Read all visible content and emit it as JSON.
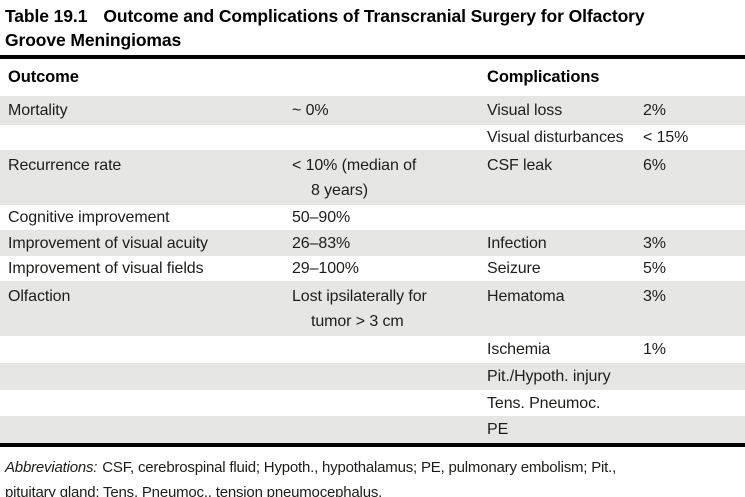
{
  "title": {
    "label": "Table 19.1",
    "line1_rest": "Outcome and Complications of Transcranial Surgery for Olfactory",
    "line2": "Groove Meningiomas"
  },
  "headers": {
    "outcome": "Outcome",
    "complications": "Complications"
  },
  "rows": [
    {
      "outcome": "Mortality",
      "outcome_value": "~ 0%",
      "complication": "Visual loss",
      "complication_value": "2%"
    },
    {
      "outcome": "",
      "outcome_value": "",
      "complication": "Visual disturbances",
      "complication_value": "< 15%"
    },
    {
      "outcome": "Recurrence rate",
      "outcome_value": "< 10% (median of",
      "outcome_value_line2": "8 years)",
      "complication": "CSF leak",
      "complication_value": "6%"
    },
    {
      "outcome": "Cognitive improvement",
      "outcome_value": "50–90%",
      "complication": "",
      "complication_value": ""
    },
    {
      "outcome": "Improvement of visual acuity",
      "outcome_value": "26–83%",
      "complication": "Infection",
      "complication_value": "3%"
    },
    {
      "outcome": "Improvement of visual fields",
      "outcome_value": "29–100%",
      "complication": "Seizure",
      "complication_value": "5%"
    },
    {
      "outcome": "Olfaction",
      "outcome_value": "Lost ipsilaterally for",
      "outcome_value_line2": "tumor > 3 cm",
      "complication": "Hematoma",
      "complication_value": "3%"
    },
    {
      "outcome": "",
      "outcome_value": "",
      "complication": "Ischemia",
      "complication_value": "1%"
    },
    {
      "outcome": "",
      "outcome_value": "",
      "complication": "Pit./Hypoth. injury",
      "complication_value": ""
    },
    {
      "outcome": "",
      "outcome_value": "",
      "complication": "Tens. Pneumoc.",
      "complication_value": ""
    },
    {
      "outcome": "",
      "outcome_value": "",
      "complication": "PE",
      "complication_value": ""
    }
  ],
  "footnote": {
    "label": "Abbreviations:",
    "line1": "CSF, cerebrospinal fluid; Hypoth., hypothalamus; PE, pulmonary embolism; Pit.,",
    "line2": "pituitary gland; Tens. Pneumoc., tension pneumocephalus."
  },
  "colors": {
    "row_shade": "#e6e6e5",
    "rule": "#000000",
    "text": "#1d1d1b"
  }
}
